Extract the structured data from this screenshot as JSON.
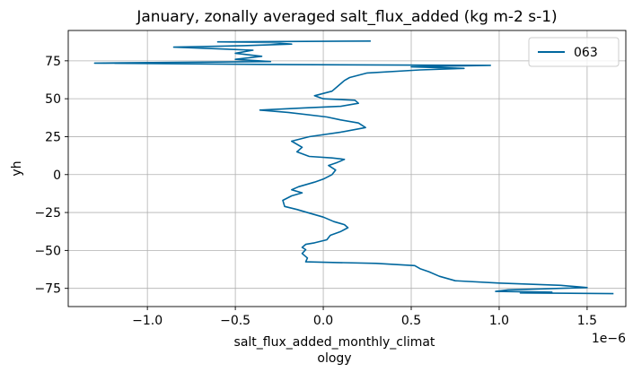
{
  "chart_data": {
    "type": "line",
    "title": "January, zonally averaged salt_flux_added (kg m-2 s-1)",
    "xlabel_lines": [
      "salt_flux_added_monthly_climat",
      "ology"
    ],
    "ylabel": "yh",
    "x_offset_label": "1e−6",
    "x_scale": 1e-06,
    "xlim": [
      -1.45,
      1.72
    ],
    "ylim": [
      -87,
      95
    ],
    "x_ticks": [
      -1.0,
      -0.5,
      0.0,
      0.5,
      1.0,
      1.5
    ],
    "x_tick_labels": [
      "−1.0",
      "−0.5",
      "0.0",
      "0.5",
      "1.0",
      "1.5"
    ],
    "y_ticks": [
      -75,
      -50,
      -25,
      0,
      25,
      50,
      75
    ],
    "y_tick_labels": [
      "−75",
      "−50",
      "−25",
      "0",
      "25",
      "50",
      "75"
    ],
    "grid": true,
    "legend_position": "top-right",
    "series": [
      {
        "name": "063",
        "color": "#00679e",
        "points": [
          [
            1.65,
            -78.5
          ],
          [
            1.12,
            -78
          ],
          [
            1.3,
            -77.5
          ],
          [
            0.98,
            -77
          ],
          [
            1.05,
            -76
          ],
          [
            1.5,
            -74.5
          ],
          [
            1.35,
            -73
          ],
          [
            1.0,
            -71.5
          ],
          [
            0.75,
            -70
          ],
          [
            0.66,
            -67
          ],
          [
            0.6,
            -64
          ],
          [
            0.55,
            -62
          ],
          [
            0.52,
            -60
          ],
          [
            0.3,
            -58.5
          ],
          [
            0.08,
            -58
          ],
          [
            -0.1,
            -57.5
          ],
          [
            -0.09,
            -55
          ],
          [
            -0.12,
            -52
          ],
          [
            -0.1,
            -49.5
          ],
          [
            -0.12,
            -48
          ],
          [
            -0.1,
            -46
          ],
          [
            -0.05,
            -45
          ],
          [
            0.02,
            -43
          ],
          [
            0.04,
            -40
          ],
          [
            0.1,
            -37.5
          ],
          [
            0.14,
            -35
          ],
          [
            0.12,
            -33
          ],
          [
            0.06,
            -31
          ],
          [
            0.0,
            -28
          ],
          [
            -0.06,
            -26
          ],
          [
            -0.15,
            -23
          ],
          [
            -0.22,
            -21
          ],
          [
            -0.23,
            -17
          ],
          [
            -0.18,
            -14
          ],
          [
            -0.12,
            -12
          ],
          [
            -0.18,
            -10
          ],
          [
            -0.14,
            -8
          ],
          [
            -0.05,
            -5
          ],
          [
            0.0,
            -3
          ],
          [
            0.05,
            0
          ],
          [
            0.07,
            3
          ],
          [
            0.03,
            6
          ],
          [
            0.08,
            8
          ],
          [
            0.12,
            10
          ],
          [
            0.05,
            11
          ],
          [
            -0.08,
            12
          ],
          [
            -0.15,
            15
          ],
          [
            -0.12,
            18
          ],
          [
            -0.18,
            22
          ],
          [
            -0.08,
            25
          ],
          [
            0.1,
            28
          ],
          [
            0.24,
            31
          ],
          [
            0.2,
            34
          ],
          [
            0.1,
            36
          ],
          [
            0.02,
            38
          ],
          [
            -0.2,
            41
          ],
          [
            -0.36,
            42.5
          ],
          [
            -0.1,
            44
          ],
          [
            0.1,
            45
          ],
          [
            0.2,
            47
          ],
          [
            0.18,
            49
          ],
          [
            0.0,
            50
          ],
          [
            -0.05,
            52
          ],
          [
            0.05,
            55
          ],
          [
            0.08,
            58
          ],
          [
            0.12,
            62
          ],
          [
            0.15,
            64
          ],
          [
            0.25,
            67
          ],
          [
            0.55,
            69
          ],
          [
            0.8,
            70
          ],
          [
            0.5,
            71
          ],
          [
            0.95,
            72
          ],
          [
            -0.2,
            72.5
          ],
          [
            -1.3,
            73.5
          ],
          [
            -0.3,
            74.5
          ],
          [
            -0.5,
            76
          ],
          [
            -0.35,
            78
          ],
          [
            -0.5,
            80
          ],
          [
            -0.4,
            82
          ],
          [
            -0.85,
            84
          ],
          [
            -0.45,
            85
          ],
          [
            -0.18,
            86
          ],
          [
            -0.3,
            87
          ],
          [
            -0.6,
            87.5
          ],
          [
            0.27,
            88
          ]
        ]
      }
    ]
  }
}
